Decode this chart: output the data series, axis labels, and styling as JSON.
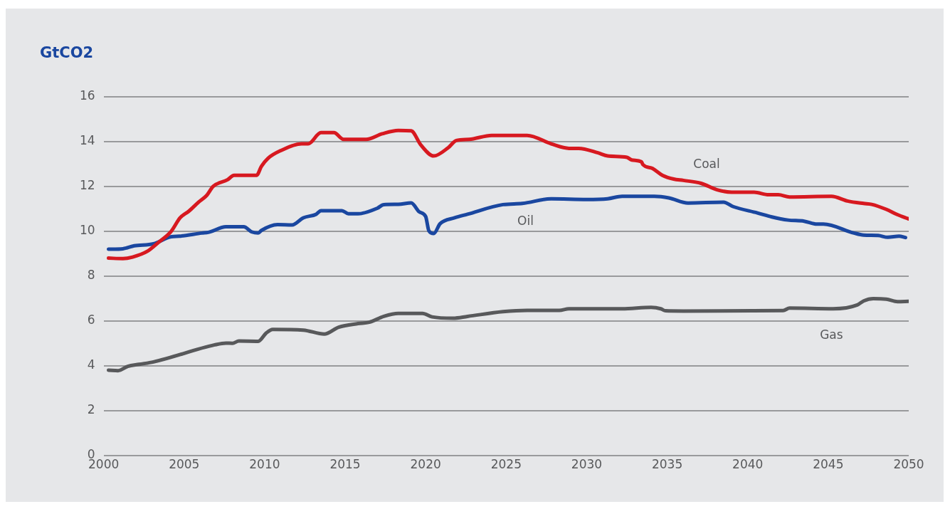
{
  "chart_data": {
    "type": "line",
    "title": "GtCO2",
    "xlim": [
      2000,
      2050
    ],
    "xticks": [
      2000,
      2005,
      2010,
      2015,
      2020,
      2025,
      2030,
      2035,
      2040,
      2045,
      2050
    ],
    "ylim": [
      0,
      16
    ],
    "yticks": [
      0,
      2,
      4,
      6,
      8,
      10,
      12,
      14,
      16
    ],
    "grid": "y",
    "legend": false,
    "marker": "none",
    "line_style": "solid",
    "series": [
      {
        "name": "Coal",
        "color": "#d71920",
        "x": [
          2000.3,
          2001.2,
          2001.8,
          2002.7,
          2003.4,
          2004.2,
          2004.75,
          2005.3,
          2005.9,
          2006.4,
          2006.8,
          2007.7,
          2008.1,
          2009.5,
          2009.8,
          2010.2,
          2011,
          2012.3,
          2012.7,
          2013.5,
          2014.3,
          2014.9,
          2016.3,
          2017.3,
          2018.3,
          2019.1,
          2019.7,
          2020.5,
          2021.4,
          2021.9,
          2022.7,
          2024.1,
          2026.3,
          2027.8,
          2028.9,
          2029.5,
          2030.7,
          2031.3,
          2032.5,
          2032.8,
          2033.4,
          2033.5,
          2034.1,
          2034.7,
          2035.4,
          2036,
          2037.1,
          2038.1,
          2039,
          2040.4,
          2041.3,
          2041.9,
          2042.6,
          2045.2,
          2046.2,
          2047.2,
          2047.7,
          2048.6,
          2049.3,
          2050
        ],
        "values": [
          8.8,
          8.78,
          8.85,
          9.1,
          9.5,
          10.0,
          10.6,
          10.9,
          11.3,
          11.6,
          12.0,
          12.3,
          12.5,
          12.5,
          12.9,
          13.25,
          13.6,
          13.9,
          13.9,
          14.4,
          14.4,
          14.1,
          14.1,
          14.35,
          14.5,
          14.48,
          13.85,
          13.36,
          13.73,
          14.05,
          14.1,
          14.28,
          14.28,
          13.9,
          13.7,
          13.7,
          13.5,
          13.36,
          13.3,
          13.18,
          13.1,
          12.97,
          12.8,
          12.5,
          12.33,
          12.27,
          12.14,
          11.85,
          11.74,
          11.74,
          11.63,
          11.63,
          11.53,
          11.56,
          11.35,
          11.24,
          11.2,
          10.98,
          10.74,
          10.55
        ]
      },
      {
        "name": "Oil",
        "color": "#1a47a0",
        "x": [
          2000.3,
          2001.2,
          2001.9,
          2003.1,
          2004.2,
          2004.7,
          2006.1,
          2006.5,
          2007.6,
          2008.7,
          2009.2,
          2009.6,
          2009.8,
          2010.8,
          2011.7,
          2012.4,
          2013.2,
          2013.5,
          2014.8,
          2015.2,
          2015.8,
          2017,
          2017.4,
          2018.3,
          2019.1,
          2019.6,
          2020,
          2020.2,
          2020.5,
          2020.9,
          2021.8,
          2022.6,
          2024.8,
          2026,
          2027.8,
          2030,
          2031.3,
          2032.2,
          2034.2,
          2035.1,
          2036.3,
          2038.5,
          2039.1,
          2040.6,
          2041.5,
          2042.5,
          2043.5,
          2044.3,
          2044.7,
          2046.6,
          2047.2,
          2048.1,
          2048.7,
          2049.4,
          2049.8
        ],
        "values": [
          9.2,
          9.22,
          9.35,
          9.44,
          9.76,
          9.78,
          9.92,
          9.95,
          10.2,
          10.2,
          9.97,
          9.92,
          10.04,
          10.3,
          10.28,
          10.6,
          10.76,
          10.92,
          10.92,
          10.78,
          10.78,
          11.03,
          11.19,
          11.2,
          11.27,
          10.87,
          10.66,
          10.02,
          9.9,
          10.34,
          10.6,
          10.76,
          11.19,
          11.24,
          11.45,
          11.42,
          11.45,
          11.56,
          11.56,
          11.49,
          11.26,
          11.3,
          11.1,
          10.82,
          10.64,
          10.5,
          10.45,
          10.32,
          10.32,
          9.92,
          9.83,
          9.81,
          9.73,
          9.78,
          9.72
        ]
      },
      {
        "name": "Gas",
        "color": "#58595b",
        "x": [
          2000.3,
          2000.9,
          2001.5,
          2002.2,
          2003.1,
          2006.9,
          2007.6,
          2008,
          2008.4,
          2009.6,
          2010.1,
          2010.5,
          2012.4,
          2013.7,
          2014.6,
          2015.8,
          2016.5,
          2017.4,
          2018.3,
          2019.8,
          2020.4,
          2021.7,
          2022.6,
          2024.8,
          2026.3,
          2028.3,
          2028.9,
          2032.2,
          2034,
          2034.6,
          2034.9,
          2036,
          2042.2,
          2042.6,
          2045.3,
          2046.8,
          2047.2,
          2047.8,
          2048.6,
          2049.3,
          2050
        ],
        "values": [
          3.8,
          3.78,
          3.97,
          4.06,
          4.17,
          4.93,
          5.01,
          5.0,
          5.1,
          5.09,
          5.46,
          5.62,
          5.59,
          5.41,
          5.72,
          5.88,
          5.94,
          6.2,
          6.33,
          6.33,
          6.18,
          6.12,
          6.2,
          6.41,
          6.47,
          6.47,
          6.54,
          6.54,
          6.6,
          6.54,
          6.45,
          6.44,
          6.46,
          6.57,
          6.54,
          6.71,
          6.89,
          6.99,
          6.97,
          6.86,
          6.87
        ]
      }
    ]
  }
}
